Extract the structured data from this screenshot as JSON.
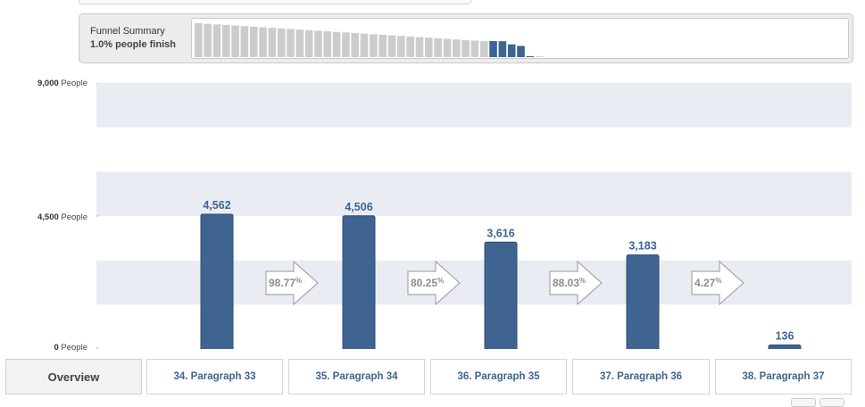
{
  "summary": {
    "title": "Funnel Summary",
    "subtitle": "1.0% people finish",
    "mini_funnel": {
      "count": 38,
      "highlight_range": [
        33,
        37
      ],
      "colors": {
        "dim": "#cccccc",
        "highlight": "#3d6590",
        "empty": "#d4d4d4"
      }
    }
  },
  "y_labels": [
    {
      "num": "9,000",
      "unit": "People"
    },
    {
      "num": "4,500",
      "unit": "People"
    },
    {
      "num": "0",
      "unit": "People"
    }
  ],
  "chart_data": {
    "type": "bar",
    "categories": [
      "34. Paragraph 33",
      "35. Paragraph 34",
      "36. Paragraph 35",
      "37. Paragraph 36",
      "38. Paragraph 37"
    ],
    "values": [
      4562,
      4506,
      3616,
      3183,
      136
    ],
    "value_labels": [
      "4,562",
      "4,506",
      "3,616",
      "3,183",
      "136"
    ],
    "ylim": [
      0,
      9000
    ],
    "yticks": [
      0,
      4500,
      9000
    ],
    "conversions": [
      {
        "value": "98.77",
        "unit": "%"
      },
      {
        "value": "80.25",
        "unit": "%"
      },
      {
        "value": "88.03",
        "unit": "%"
      },
      {
        "value": "4.27",
        "unit": "%"
      }
    ],
    "bar_color": "#3f6491",
    "band_color": "#e9edf3"
  },
  "tabs": {
    "overview": "Overview",
    "steps": [
      "34. Paragraph 33",
      "35. Paragraph 34",
      "36. Paragraph 35",
      "37. Paragraph 36",
      "38. Paragraph 37"
    ]
  }
}
